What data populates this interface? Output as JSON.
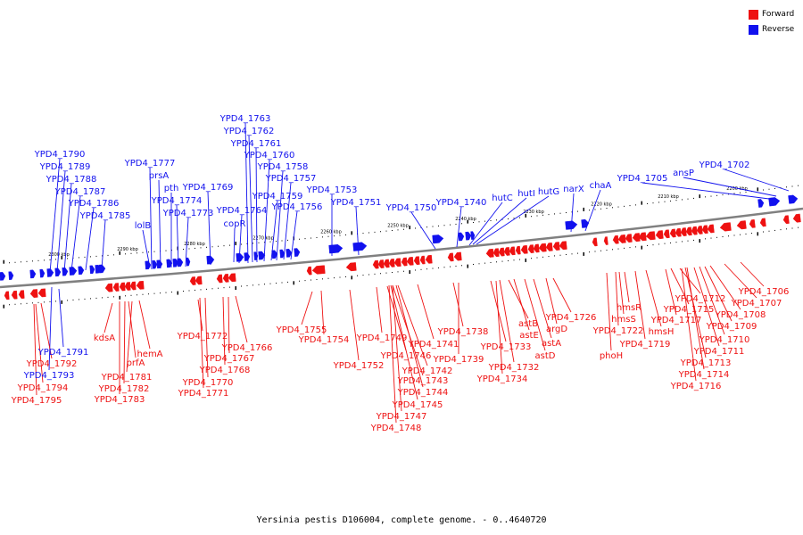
{
  "caption": "Yersinia pestis D106004, complete genome. - 0..4640720",
  "legend": {
    "forward_label": "Forward",
    "reverse_label": "Reverse",
    "forward_color": "#ee1111",
    "reverse_color": "#1111ee"
  },
  "colors": {
    "forward": "#ee1111",
    "reverse": "#1111ee",
    "backbone": "#808080"
  },
  "scale_labels": [
    "2300 kbp",
    "2290 kbp",
    "2280 kbp",
    "2270 kbp",
    "2260 kbp",
    "2250 kbp",
    "2240 kbp",
    "2230 kbp",
    "2220 kbp",
    "2210 kbp",
    "2200 kbp"
  ],
  "reverse_genes": [
    "YPD4_1790",
    "YPD4_1789",
    "YPD4_1788",
    "YPD4_1787",
    "YPD4_1786",
    "YPD4_1785",
    "YPD4_1791",
    "YPD4_1793",
    "YPD4_1777",
    "prsA",
    "pth",
    "YPD4_1774",
    "YPD4_1773",
    "lolB",
    "YPD4_1769",
    "YPD4_1763",
    "YPD4_1762",
    "YPD4_1761",
    "YPD4_1760",
    "YPD4_1758",
    "YPD4_1757",
    "YPD4_1759",
    "YPD4_1756",
    "YPD4_1764",
    "copR",
    "YPD4_1753",
    "YPD4_1751",
    "YPD4_1750",
    "YPD4_1740",
    "hutC",
    "hutI",
    "hutG",
    "narX",
    "chaA",
    "YPD4_1705",
    "ansP",
    "YPD4_1702"
  ],
  "forward_genes": [
    "YPD4_1792",
    "YPD4_1794",
    "YPD4_1795",
    "kdsA",
    "hemA",
    "prfA",
    "YPD4_1781",
    "YPD4_1782",
    "YPD4_1783",
    "YPD4_1772",
    "YPD4_1766",
    "YPD4_1767",
    "YPD4_1768",
    "YPD4_1770",
    "YPD4_1771",
    "YPD4_1755",
    "YPD4_1754",
    "YPD4_1752",
    "YPD4_1749",
    "YPD4_1746",
    "YPD4_1741",
    "YPD4_1742",
    "YPD4_1743",
    "YPD4_1744",
    "YPD4_1745",
    "YPD4_1747",
    "YPD4_1748",
    "YPD4_1738",
    "YPD4_1739",
    "YPD4_1734",
    "YPD4_1733",
    "YPD4_1732",
    "astB",
    "astE",
    "astA",
    "astD",
    "argD",
    "YPD4_1726",
    "phoH",
    "YPD4_1722",
    "hmsS",
    "hmsR",
    "hmsH",
    "YPD4_1719",
    "YPD4_1717",
    "YPD4_1715",
    "YPD4_1712",
    "YPD4_1713",
    "YPD4_1714",
    "YPD4_1716",
    "YPD4_1711",
    "YPD4_1710",
    "YPD4_1709",
    "YPD4_1708",
    "YPD4_1707",
    "YPD4_1706"
  ]
}
